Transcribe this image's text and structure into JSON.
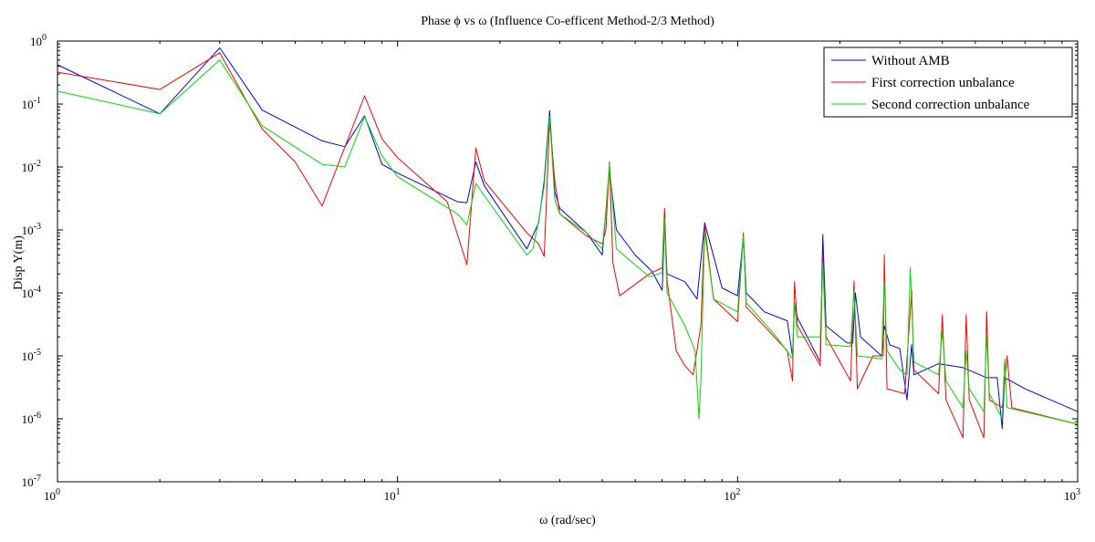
{
  "chart_data": {
    "type": "line",
    "title": "Phase ϕ vs ω (Influence Co-efficent Method-2/3 Method)",
    "xlabel": "ω (rad/sec)",
    "ylabel": "Disp Y(m)",
    "xscale": "log",
    "yscale": "log",
    "xlim": [
      1,
      1000
    ],
    "ylim": [
      1e-07,
      1
    ],
    "x_ticks": [
      {
        "value": 1,
        "base": "10",
        "exp": "0"
      },
      {
        "value": 10,
        "base": "10",
        "exp": "1"
      },
      {
        "value": 100,
        "base": "10",
        "exp": "2"
      },
      {
        "value": 1000,
        "base": "10",
        "exp": "3"
      }
    ],
    "y_ticks": [
      {
        "value": 1,
        "base": "10",
        "exp": "0"
      },
      {
        "value": 0.1,
        "base": "10",
        "exp": "-1"
      },
      {
        "value": 0.01,
        "base": "10",
        "exp": "-2"
      },
      {
        "value": 0.001,
        "base": "10",
        "exp": "-3"
      },
      {
        "value": 0.0001,
        "base": "10",
        "exp": "-4"
      },
      {
        "value": 1e-05,
        "base": "10",
        "exp": "-5"
      },
      {
        "value": 1e-06,
        "base": "10",
        "exp": "-6"
      },
      {
        "value": 1e-07,
        "base": "10",
        "exp": "-7"
      }
    ],
    "grid": false,
    "legend_position": "top-right",
    "series": [
      {
        "name": "Without AMB",
        "color": "#0000ff",
        "points": [
          [
            1,
            0.42
          ],
          [
            2,
            0.07
          ],
          [
            3,
            0.78
          ],
          [
            4,
            0.08
          ],
          [
            6,
            0.026
          ],
          [
            7,
            0.021
          ],
          [
            8,
            0.065
          ],
          [
            9,
            0.011
          ],
          [
            10,
            0.008
          ],
          [
            15,
            0.0028
          ],
          [
            16,
            0.0027
          ],
          [
            17,
            0.012
          ],
          [
            18,
            0.005
          ],
          [
            24,
            0.0005
          ],
          [
            26,
            0.0013
          ],
          [
            27,
            0.006
          ],
          [
            28,
            0.078
          ],
          [
            29,
            0.004
          ],
          [
            30,
            0.0022
          ],
          [
            36,
            0.0009
          ],
          [
            40,
            0.0004
          ],
          [
            41,
            0.002
          ],
          [
            42,
            0.009
          ],
          [
            44,
            0.001
          ],
          [
            50,
            0.0004
          ],
          [
            56,
            0.00022
          ],
          [
            60,
            0.00011
          ],
          [
            61,
            0.0013
          ],
          [
            62,
            0.0002
          ],
          [
            70,
            0.00015
          ],
          [
            76,
            8e-05
          ],
          [
            80,
            0.0013
          ],
          [
            90,
            0.00012
          ],
          [
            100,
            9e-05
          ],
          [
            104,
            0.0008
          ],
          [
            106,
            0.0001
          ],
          [
            120,
            5e-05
          ],
          [
            140,
            3.6e-05
          ],
          [
            145,
            1e-05
          ],
          [
            147,
            7e-05
          ],
          [
            150,
            4e-05
          ],
          [
            175,
            8e-06
          ],
          [
            178,
            0.00085
          ],
          [
            182,
            3e-05
          ],
          [
            210,
            1.6e-05
          ],
          [
            218,
            1.6e-05
          ],
          [
            222,
            0.0001
          ],
          [
            230,
            2e-05
          ],
          [
            265,
            1e-05
          ],
          [
            270,
            3e-05
          ],
          [
            280,
            1.5e-05
          ],
          [
            300,
            1.3e-05
          ],
          [
            315,
            2e-06
          ],
          [
            325,
            1.5e-05
          ],
          [
            330,
            5e-06
          ],
          [
            390,
            7.5e-06
          ],
          [
            460,
            6.5e-06
          ],
          [
            540,
            4.5e-06
          ],
          [
            580,
            4.5e-06
          ],
          [
            600,
            7e-07
          ],
          [
            610,
            4.5e-06
          ],
          [
            700,
            3e-06
          ],
          [
            1000,
            1.3e-06
          ]
        ]
      },
      {
        "name": "First correction unbalance",
        "color": "#ff0000",
        "points": [
          [
            1,
            0.32
          ],
          [
            2,
            0.17
          ],
          [
            3,
            0.65
          ],
          [
            4,
            0.04
          ],
          [
            5,
            0.012
          ],
          [
            6,
            0.0024
          ],
          [
            8,
            0.135
          ],
          [
            9,
            0.028
          ],
          [
            10,
            0.014
          ],
          [
            14,
            0.0028
          ],
          [
            16,
            0.00028
          ],
          [
            17,
            0.02
          ],
          [
            18,
            0.006
          ],
          [
            24,
            0.0009
          ],
          [
            26,
            0.0006
          ],
          [
            27,
            0.00038
          ],
          [
            28,
            0.055
          ],
          [
            29,
            0.006
          ],
          [
            30,
            0.0018
          ],
          [
            36,
            0.0008
          ],
          [
            40,
            0.0006
          ],
          [
            41,
            0.001
          ],
          [
            42,
            0.012
          ],
          [
            43,
            0.0003
          ],
          [
            45,
            9e-05
          ],
          [
            55,
            0.0002
          ],
          [
            60,
            0.00025
          ],
          [
            61,
            0.0022
          ],
          [
            62,
            0.00016
          ],
          [
            66,
            1.2e-05
          ],
          [
            70,
            7e-06
          ],
          [
            74,
            5e-06
          ],
          [
            78,
            3e-05
          ],
          [
            80,
            0.0012
          ],
          [
            85,
            8e-05
          ],
          [
            100,
            3.5e-05
          ],
          [
            104,
            0.0009
          ],
          [
            106,
            6e-05
          ],
          [
            140,
            1.2e-05
          ],
          [
            145,
            4e-06
          ],
          [
            147,
            0.00015
          ],
          [
            150,
            3e-05
          ],
          [
            175,
            7e-06
          ],
          [
            178,
            0.0004
          ],
          [
            182,
            2e-05
          ],
          [
            215,
            4e-06
          ],
          [
            220,
            0.000155
          ],
          [
            225,
            3e-06
          ],
          [
            250,
            1e-05
          ],
          [
            268,
            1e-05
          ],
          [
            270,
            0.0004
          ],
          [
            275,
            3e-06
          ],
          [
            310,
            2.5e-06
          ],
          [
            325,
            0.00011
          ],
          [
            330,
            6e-06
          ],
          [
            390,
            2.5e-06
          ],
          [
            400,
            4.5e-05
          ],
          [
            410,
            2e-06
          ],
          [
            460,
            5e-07
          ],
          [
            470,
            4.5e-05
          ],
          [
            480,
            2e-06
          ],
          [
            530,
            5e-07
          ],
          [
            540,
            5e-05
          ],
          [
            550,
            2e-06
          ],
          [
            600,
            1.5e-06
          ],
          [
            620,
            1e-05
          ],
          [
            640,
            1.5e-06
          ],
          [
            1000,
            8.2e-07
          ]
        ]
      },
      {
        "name": "Second correction unbalance",
        "color": "#00dd00",
        "points": [
          [
            1,
            0.16
          ],
          [
            2,
            0.07
          ],
          [
            3,
            0.5
          ],
          [
            4,
            0.045
          ],
          [
            6,
            0.011
          ],
          [
            7,
            0.01
          ],
          [
            8,
            0.063
          ],
          [
            9,
            0.015
          ],
          [
            10,
            0.007
          ],
          [
            15,
            0.0018
          ],
          [
            16,
            0.0012
          ],
          [
            17,
            0.0055
          ],
          [
            18,
            0.0035
          ],
          [
            24,
            0.0004
          ],
          [
            25,
            0.0005
          ],
          [
            26,
            0.0014
          ],
          [
            27,
            0.005
          ],
          [
            28,
            0.065
          ],
          [
            29,
            0.003
          ],
          [
            30,
            0.0018
          ],
          [
            36,
            0.0009
          ],
          [
            40,
            0.0005
          ],
          [
            41,
            0.002
          ],
          [
            42,
            0.011
          ],
          [
            44,
            0.0005
          ],
          [
            55,
            0.00018
          ],
          [
            60,
            0.00021
          ],
          [
            61,
            0.0015
          ],
          [
            62,
            0.0001
          ],
          [
            70,
            3e-05
          ],
          [
            75,
            1.2e-05
          ],
          [
            77,
            1e-06
          ],
          [
            78,
            4e-06
          ],
          [
            80,
            0.00095
          ],
          [
            85,
            8e-05
          ],
          [
            100,
            5e-05
          ],
          [
            104,
            0.0008
          ],
          [
            106,
            7e-05
          ],
          [
            130,
            2e-05
          ],
          [
            145,
            9e-06
          ],
          [
            147,
            7e-05
          ],
          [
            150,
            2e-05
          ],
          [
            175,
            2e-05
          ],
          [
            178,
            0.0003
          ],
          [
            182,
            1.5e-05
          ],
          [
            215,
            1.4e-05
          ],
          [
            220,
            0.00011
          ],
          [
            225,
            1e-05
          ],
          [
            265,
            9e-06
          ],
          [
            270,
            0.00015
          ],
          [
            275,
            1.2e-05
          ],
          [
            300,
            6e-06
          ],
          [
            315,
            5e-06
          ],
          [
            322,
            0.00025
          ],
          [
            330,
            8e-06
          ],
          [
            390,
            5e-06
          ],
          [
            400,
            2.5e-05
          ],
          [
            410,
            4e-06
          ],
          [
            460,
            1.5e-06
          ],
          [
            470,
            1.2e-05
          ],
          [
            480,
            3e-06
          ],
          [
            530,
            1.3e-06
          ],
          [
            540,
            2.2e-05
          ],
          [
            550,
            2.5e-06
          ],
          [
            600,
            1e-06
          ],
          [
            610,
            9e-06
          ],
          [
            620,
            1.5e-06
          ],
          [
            1000,
            8.2e-07
          ]
        ]
      }
    ]
  }
}
